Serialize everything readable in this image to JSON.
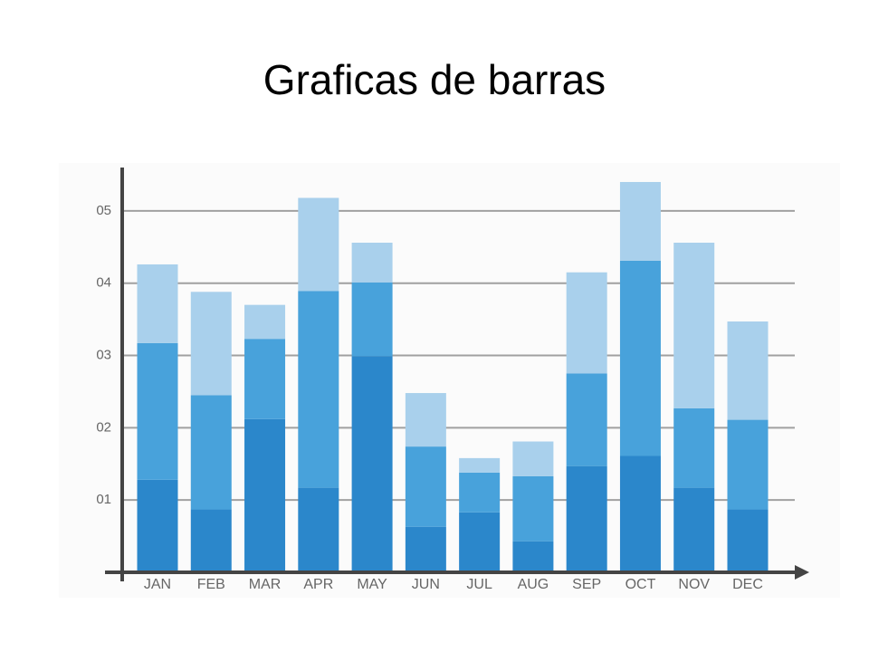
{
  "chart_data": {
    "type": "stacked-bar",
    "title": "Graficas de barras",
    "categories": [
      "JAN",
      "FEB",
      "MAR",
      "APR",
      "MAY",
      "JUN",
      "JUL",
      "AUG",
      "SEP",
      "OCT",
      "NOV",
      "DEC"
    ],
    "series": [
      {
        "color": "#2b87cb",
        "values": [
          1.28,
          0.87,
          2.12,
          1.17,
          2.99,
          0.63,
          0.83,
          0.43,
          1.47,
          1.61,
          1.17,
          0.87
        ]
      },
      {
        "color": "#48a2db",
        "values": [
          1.89,
          1.58,
          1.11,
          2.72,
          1.02,
          1.11,
          0.55,
          0.9,
          1.28,
          2.7,
          1.1,
          1.24
        ]
      },
      {
        "color": "#a9d0ec",
        "values": [
          1.09,
          1.43,
          0.47,
          1.29,
          0.55,
          0.74,
          0.2,
          0.48,
          1.4,
          1.09,
          2.29,
          1.36
        ]
      }
    ],
    "ylim": [
      0,
      5.6
    ],
    "yticks": [
      {
        "value": 1,
        "label": "01"
      },
      {
        "value": 2,
        "label": "02"
      },
      {
        "value": 3,
        "label": "03"
      },
      {
        "value": 4,
        "label": "04"
      },
      {
        "value": 5,
        "label": "05"
      }
    ],
    "grid": true
  }
}
